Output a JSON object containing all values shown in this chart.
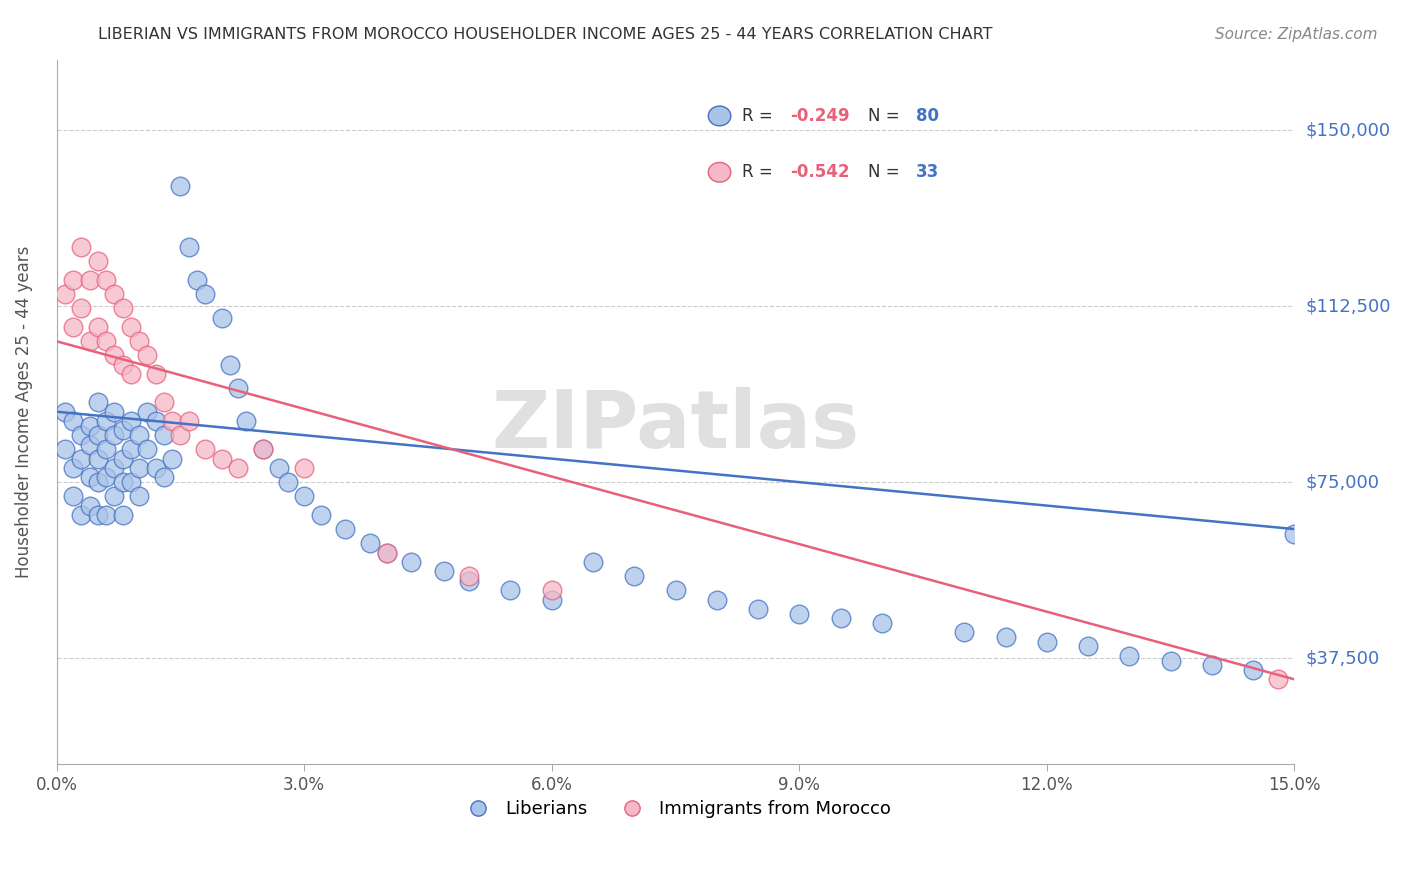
{
  "title": "LIBERIAN VS IMMIGRANTS FROM MOROCCO HOUSEHOLDER INCOME AGES 25 - 44 YEARS CORRELATION CHART",
  "source": "Source: ZipAtlas.com",
  "ylabel": "Householder Income Ages 25 - 44 years",
  "xmin": 0.0,
  "xmax": 0.15,
  "ymin": 15000,
  "ymax": 165000,
  "yticks": [
    37500,
    75000,
    112500,
    150000
  ],
  "xtick_labels": [
    "0.0%",
    "",
    "",
    "",
    "",
    "",
    "3.0%",
    "",
    "",
    "",
    "",
    "",
    "6.0%",
    "",
    "",
    "",
    "",
    "",
    "9.0%",
    "",
    "",
    "",
    "",
    "",
    "12.0%",
    "",
    "",
    "",
    "",
    "",
    "15.0%"
  ],
  "xtick_vals": [
    0.0,
    0.005,
    0.01,
    0.015,
    0.02,
    0.025,
    0.03,
    0.035,
    0.04,
    0.045,
    0.05,
    0.055,
    0.06,
    0.065,
    0.07,
    0.075,
    0.08,
    0.085,
    0.09,
    0.095,
    0.1,
    0.105,
    0.11,
    0.115,
    0.12,
    0.125,
    0.13,
    0.135,
    0.14,
    0.145,
    0.15
  ],
  "blue_R": -0.249,
  "blue_N": 80,
  "pink_R": -0.542,
  "pink_N": 33,
  "blue_color": "#aac4e8",
  "pink_color": "#f4b8c8",
  "blue_line_color": "#4472c4",
  "pink_line_color": "#e8607a",
  "blue_edge_color": "#4472c4",
  "pink_edge_color": "#e8607a",
  "watermark": "ZIPatlas",
  "legend_label_blue": "Liberians",
  "legend_label_pink": "Immigrants from Morocco",
  "blue_x": [
    0.001,
    0.001,
    0.002,
    0.002,
    0.002,
    0.003,
    0.003,
    0.003,
    0.004,
    0.004,
    0.004,
    0.004,
    0.005,
    0.005,
    0.005,
    0.005,
    0.005,
    0.006,
    0.006,
    0.006,
    0.006,
    0.007,
    0.007,
    0.007,
    0.007,
    0.008,
    0.008,
    0.008,
    0.008,
    0.009,
    0.009,
    0.009,
    0.01,
    0.01,
    0.01,
    0.011,
    0.011,
    0.012,
    0.012,
    0.013,
    0.013,
    0.014,
    0.015,
    0.016,
    0.017,
    0.018,
    0.02,
    0.021,
    0.022,
    0.023,
    0.025,
    0.027,
    0.028,
    0.03,
    0.032,
    0.035,
    0.038,
    0.04,
    0.043,
    0.047,
    0.05,
    0.055,
    0.06,
    0.065,
    0.07,
    0.075,
    0.08,
    0.085,
    0.09,
    0.095,
    0.1,
    0.11,
    0.115,
    0.12,
    0.125,
    0.13,
    0.135,
    0.14,
    0.145,
    0.15
  ],
  "blue_y": [
    90000,
    82000,
    88000,
    78000,
    72000,
    85000,
    80000,
    68000,
    87000,
    83000,
    76000,
    70000,
    92000,
    85000,
    80000,
    75000,
    68000,
    88000,
    82000,
    76000,
    68000,
    90000,
    85000,
    78000,
    72000,
    86000,
    80000,
    75000,
    68000,
    88000,
    82000,
    75000,
    85000,
    78000,
    72000,
    90000,
    82000,
    88000,
    78000,
    85000,
    76000,
    80000,
    138000,
    125000,
    118000,
    115000,
    110000,
    100000,
    95000,
    88000,
    82000,
    78000,
    75000,
    72000,
    68000,
    65000,
    62000,
    60000,
    58000,
    56000,
    54000,
    52000,
    50000,
    58000,
    55000,
    52000,
    50000,
    48000,
    47000,
    46000,
    45000,
    43000,
    42000,
    41000,
    40000,
    38000,
    37000,
    36000,
    35000,
    64000
  ],
  "pink_x": [
    0.001,
    0.002,
    0.002,
    0.003,
    0.003,
    0.004,
    0.004,
    0.005,
    0.005,
    0.006,
    0.006,
    0.007,
    0.007,
    0.008,
    0.008,
    0.009,
    0.009,
    0.01,
    0.011,
    0.012,
    0.013,
    0.014,
    0.015,
    0.016,
    0.018,
    0.02,
    0.022,
    0.025,
    0.03,
    0.04,
    0.05,
    0.06,
    0.148
  ],
  "pink_y": [
    115000,
    118000,
    108000,
    125000,
    112000,
    118000,
    105000,
    122000,
    108000,
    118000,
    105000,
    115000,
    102000,
    112000,
    100000,
    108000,
    98000,
    105000,
    102000,
    98000,
    92000,
    88000,
    85000,
    88000,
    82000,
    80000,
    78000,
    82000,
    78000,
    60000,
    55000,
    52000,
    33000
  ]
}
